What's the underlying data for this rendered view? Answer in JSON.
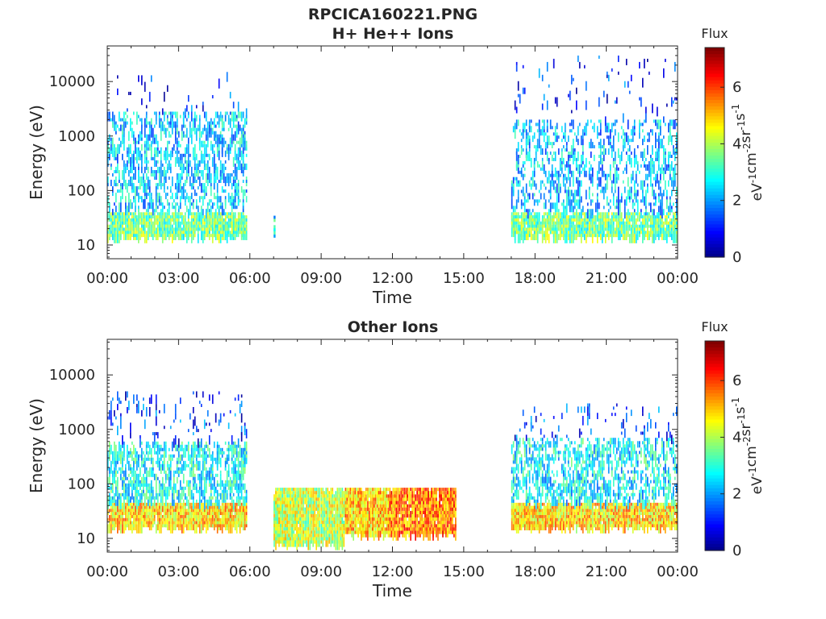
{
  "figure_title": "RPCICA160221.PNG",
  "chart_data": [
    {
      "type": "heatmap",
      "title": "H+ He++ Ions",
      "xlabel": "Time",
      "ylabel": "Energy (eV)",
      "x_ticks": [
        "00:00",
        "03:00",
        "06:00",
        "09:00",
        "12:00",
        "15:00",
        "18:00",
        "21:00",
        "00:00"
      ],
      "x_range_hours": [
        0,
        24
      ],
      "y_ticks": [
        "10",
        "100",
        "1000",
        "10000"
      ],
      "y_tick_values": [
        10,
        100,
        1000,
        10000
      ],
      "y_range": [
        5.6,
        45000
      ],
      "y_scale": "log",
      "colorbar": {
        "title": "Flux",
        "unit": "eV-1cm-2sr-1s-1",
        "ticks": [
          "0",
          "2",
          "4",
          "6"
        ],
        "tick_values": [
          0,
          2,
          4,
          6
        ],
        "range": [
          0,
          7.4
        ],
        "colormap": "jet"
      },
      "data_blocks": [
        {
          "t_start": 0.0,
          "t_end": 5.9,
          "e_low": 14,
          "e_high": 40,
          "flux": 3.6,
          "density": 0.85
        },
        {
          "t_start": 0.0,
          "t_end": 5.9,
          "e_low": 40,
          "e_high": 2800,
          "flux": 2.4,
          "density": 0.32
        },
        {
          "t_start": 0.0,
          "t_end": 5.9,
          "e_low": 2800,
          "e_high": 15000,
          "flux": 1.2,
          "density": 0.03
        },
        {
          "t_start": 7.0,
          "t_end": 7.1,
          "e_low": 8,
          "e_high": 45,
          "flux": 2.8,
          "density": 0.5
        },
        {
          "t_start": 17.0,
          "t_end": 24.0,
          "e_low": 14,
          "e_high": 40,
          "flux": 3.6,
          "density": 0.85
        },
        {
          "t_start": 17.0,
          "t_end": 24.0,
          "e_low": 40,
          "e_high": 2000,
          "flux": 2.3,
          "density": 0.26
        },
        {
          "t_start": 17.0,
          "t_end": 24.0,
          "e_low": 2000,
          "e_high": 30000,
          "flux": 1.2,
          "density": 0.04
        }
      ]
    },
    {
      "type": "heatmap",
      "title": "Other Ions",
      "xlabel": "Time",
      "ylabel": "Energy (eV)",
      "x_ticks": [
        "00:00",
        "03:00",
        "06:00",
        "09:00",
        "12:00",
        "15:00",
        "18:00",
        "21:00",
        "00:00"
      ],
      "x_range_hours": [
        0,
        24
      ],
      "y_ticks": [
        "10",
        "100",
        "1000",
        "10000"
      ],
      "y_tick_values": [
        10,
        100,
        1000,
        10000
      ],
      "y_range": [
        5.6,
        45000
      ],
      "y_scale": "log",
      "colorbar": {
        "title": "Flux",
        "unit": "eV-1cm-2sr-1s-1",
        "ticks": [
          "0",
          "2",
          "4",
          "6"
        ],
        "tick_values": [
          0,
          2,
          4,
          6
        ],
        "range": [
          0,
          7.4
        ],
        "colormap": "jet"
      },
      "data_blocks": [
        {
          "t_start": 0.0,
          "t_end": 5.9,
          "e_low": 16,
          "e_high": 45,
          "flux": 4.9,
          "density": 0.92
        },
        {
          "t_start": 0.0,
          "t_end": 5.9,
          "e_low": 45,
          "e_high": 600,
          "flux": 2.8,
          "density": 0.45
        },
        {
          "t_start": 0.0,
          "t_end": 5.9,
          "e_low": 600,
          "e_high": 5000,
          "flux": 1.3,
          "density": 0.06
        },
        {
          "t_start": 7.0,
          "t_end": 10.0,
          "e_low": 8,
          "e_high": 85,
          "flux": 4.2,
          "density": 0.9
        },
        {
          "t_start": 10.0,
          "t_end": 11.8,
          "e_low": 12,
          "e_high": 85,
          "flux": 5.0,
          "density": 0.92
        },
        {
          "t_start": 11.8,
          "t_end": 14.7,
          "e_low": 12,
          "e_high": 85,
          "flux": 5.6,
          "density": 0.92
        },
        {
          "t_start": 17.0,
          "t_end": 24.0,
          "e_low": 16,
          "e_high": 45,
          "flux": 4.9,
          "density": 0.92
        },
        {
          "t_start": 17.0,
          "t_end": 24.0,
          "e_low": 45,
          "e_high": 700,
          "flux": 2.7,
          "density": 0.38
        },
        {
          "t_start": 17.0,
          "t_end": 24.0,
          "e_low": 700,
          "e_high": 3000,
          "flux": 1.3,
          "density": 0.05
        }
      ]
    }
  ]
}
